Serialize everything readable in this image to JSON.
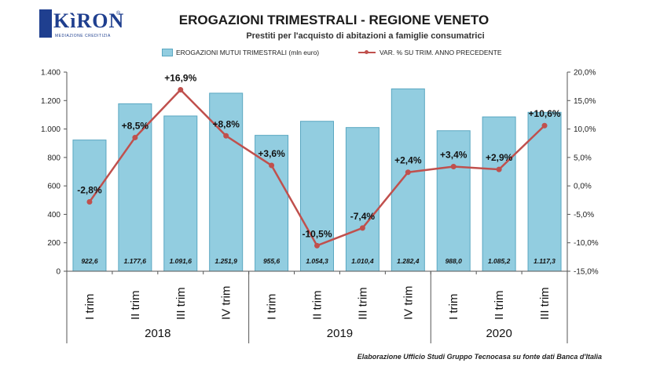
{
  "header": {
    "logo_text": "KìRON",
    "logo_reg": "®",
    "logo_sub": "MEDIAZIONE CREDITIZIA",
    "title": "EROGAZIONI TRIMESTRALI - REGIONE VENETO",
    "subtitle": "Prestiti per l'acquisto di abitazioni a famiglie consumatrici"
  },
  "legend": {
    "bars_label": "EROGAZIONI MUTUI TRIMESTRALI (mln euro)",
    "line_label": "VAR. % SU TRIM. ANNO PRECEDENTE"
  },
  "source": "Elaborazione Ufficio Studi Gruppo Tecnocasa su fonte dati Banca d'Italia",
  "chart_data": {
    "type": "bar",
    "title": "EROGAZIONI TRIMESTRALI - REGIONE VENETO",
    "subtitle": "Prestiti per l'acquisto di abitazioni a famiglie consumatrici",
    "categories": [
      "I trim",
      "II trim",
      "III trim",
      "IV trim",
      "I trim",
      "II trim",
      "III trim",
      "IV trim",
      "I trim",
      "II trim",
      "III trim"
    ],
    "years": [
      {
        "label": "2018",
        "span": 4
      },
      {
        "label": "2019",
        "span": 4
      },
      {
        "label": "2020",
        "span": 3
      }
    ],
    "series": [
      {
        "name": "EROGAZIONI MUTUI TRIMESTRALI (mln euro)",
        "type": "bar",
        "axis": "left",
        "values": [
          922.6,
          1177.6,
          1091.6,
          1251.9,
          955.6,
          1054.3,
          1010.4,
          1282.4,
          988.0,
          1085.2,
          1117.3
        ],
        "labels": [
          "922,6",
          "1.177,6",
          "1.091,6",
          "1.251,9",
          "955,6",
          "1.054,3",
          "1.010,4",
          "1.282,4",
          "988,0",
          "1.085,2",
          "1.117,3"
        ]
      },
      {
        "name": "VAR. % SU TRIM. ANNO PRECEDENTE",
        "type": "line",
        "axis": "right",
        "values": [
          -2.8,
          8.5,
          16.9,
          8.8,
          3.6,
          -10.5,
          -7.4,
          2.4,
          3.4,
          2.9,
          10.6
        ],
        "labels": [
          "-2,8%",
          "+8,5%",
          "+16,9%",
          "+8,8%",
          "+3,6%",
          "-10,5%",
          "-7,4%",
          "+2,4%",
          "+3,4%",
          "+2,9%",
          "+10,6%"
        ]
      }
    ],
    "y_left": {
      "min": 0,
      "max": 1400,
      "ticks": [
        0,
        200,
        400,
        600,
        800,
        1000,
        1200,
        1400
      ],
      "tick_labels": [
        "0",
        "200",
        "400",
        "600",
        "800",
        "1.000",
        "1.200",
        "1.400"
      ]
    },
    "y_right": {
      "min": -15,
      "max": 20,
      "ticks": [
        -15,
        -10,
        -5,
        0,
        5,
        10,
        15,
        20
      ],
      "tick_labels": [
        "-15,0%",
        "-10,0%",
        "-5,0%",
        "0,0%",
        "5,0%",
        "10,0%",
        "15,0%",
        "20,0%"
      ]
    },
    "grid": false,
    "legend_position": "top",
    "colors": {
      "bar": "#92cde0",
      "bar_border": "#5aa7c1",
      "line": "#c0504d"
    }
  }
}
